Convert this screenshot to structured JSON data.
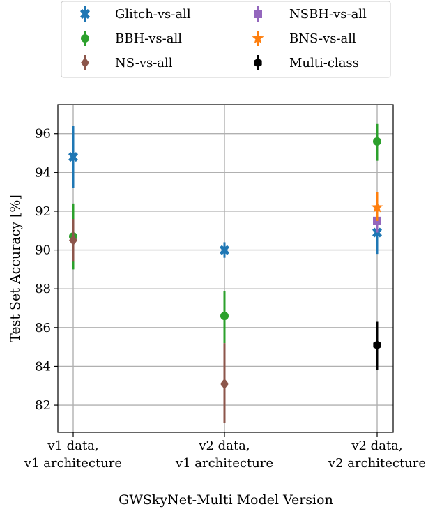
{
  "chart_data": {
    "type": "scatter",
    "xlabel": "GWSkyNet-Multi Model Version",
    "ylabel": "Test Set Accuracy [%]",
    "categories": [
      [
        "v1 data,",
        "v1 architecture"
      ],
      [
        "v2 data,",
        "v1 architecture"
      ],
      [
        "v2 data,",
        "v2 architecture"
      ]
    ],
    "ylim": [
      80.6,
      97.5
    ],
    "yticks": [
      82,
      84,
      86,
      88,
      90,
      92,
      94,
      96
    ],
    "grid": true,
    "legend_position": "above plot, two columns",
    "series": [
      {
        "name": "Glitch-vs-all",
        "color": "#1f77b4",
        "marker": "X",
        "points": [
          {
            "x": 0,
            "y": 94.8,
            "lo": 93.2,
            "hi": 96.4
          },
          {
            "x": 1,
            "y": 90.0,
            "lo": 89.6,
            "hi": 90.4
          },
          {
            "x": 2,
            "y": 90.9,
            "lo": 89.8,
            "hi": 91.2
          }
        ]
      },
      {
        "name": "BBH-vs-all",
        "color": "#2ca02c",
        "marker": "o",
        "points": [
          {
            "x": 0,
            "y": 90.7,
            "lo": 89.0,
            "hi": 92.4
          },
          {
            "x": 1,
            "y": 86.6,
            "lo": 85.2,
            "hi": 87.9
          },
          {
            "x": 2,
            "y": 95.6,
            "lo": 94.6,
            "hi": 96.5
          }
        ]
      },
      {
        "name": "NS-vs-all",
        "color": "#8c564b",
        "marker": "D",
        "points": [
          {
            "x": 0,
            "y": 90.5,
            "lo": 89.4,
            "hi": 91.6
          },
          {
            "x": 1,
            "y": 83.1,
            "lo": 81.1,
            "hi": 85.2
          }
        ]
      },
      {
        "name": "NSBH-vs-all",
        "color": "#9467bd",
        "marker": "s",
        "points": [
          {
            "x": 2,
            "y": 91.5,
            "lo": 90.9,
            "hi": 92.2
          }
        ]
      },
      {
        "name": "BNS-vs-all",
        "color": "#ff7f0e",
        "marker": "*",
        "points": [
          {
            "x": 2,
            "y": 92.2,
            "lo": 91.5,
            "hi": 93.0
          }
        ]
      },
      {
        "name": "Multi-class",
        "color": "#000000",
        "marker": "h",
        "points": [
          {
            "x": 2,
            "y": 85.1,
            "lo": 83.8,
            "hi": 86.3
          }
        ]
      }
    ]
  }
}
